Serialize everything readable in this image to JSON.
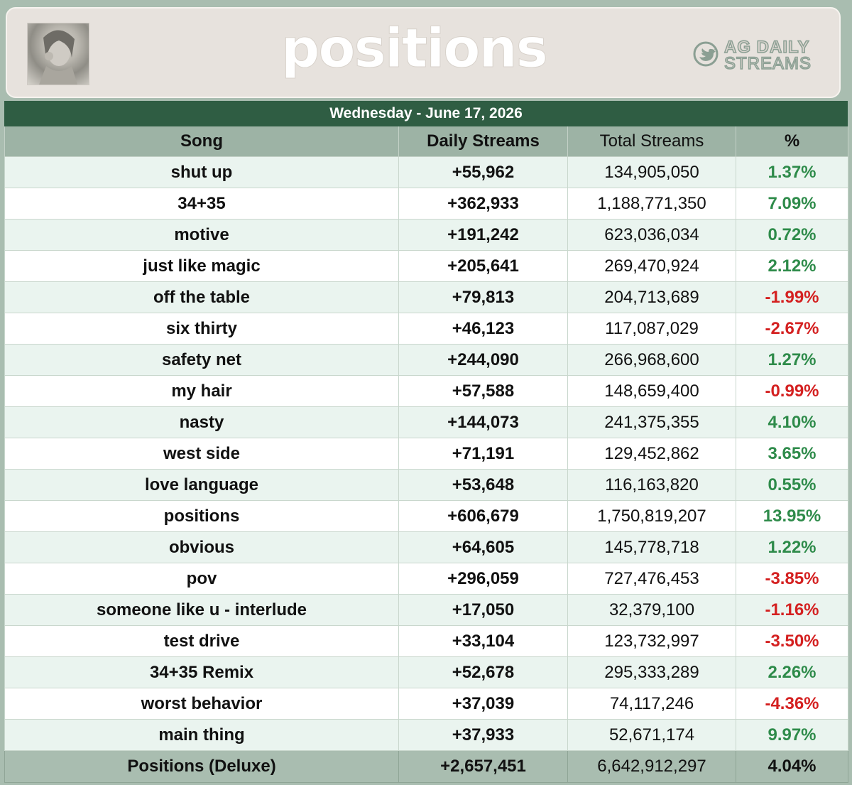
{
  "header": {
    "logo_text": "positions",
    "brand_line1": "AG DAILY",
    "brand_line2": "STREAMS"
  },
  "date": "Wednesday - June 17, 2026",
  "columns": [
    "Song",
    "Daily Streams",
    "Total Streams",
    "%"
  ],
  "rows": [
    {
      "song": "shut up",
      "daily": "+55,962",
      "total": "134,905,050",
      "pct": "1.37%",
      "dir": "pos"
    },
    {
      "song": "34+35",
      "daily": "+362,933",
      "total": "1,188,771,350",
      "pct": "7.09%",
      "dir": "pos"
    },
    {
      "song": "motive",
      "daily": "+191,242",
      "total": "623,036,034",
      "pct": "0.72%",
      "dir": "pos"
    },
    {
      "song": "just like magic",
      "daily": "+205,641",
      "total": "269,470,924",
      "pct": "2.12%",
      "dir": "pos"
    },
    {
      "song": "off the table",
      "daily": "+79,813",
      "total": "204,713,689",
      "pct": "-1.99%",
      "dir": "neg"
    },
    {
      "song": "six thirty",
      "daily": "+46,123",
      "total": "117,087,029",
      "pct": "-2.67%",
      "dir": "neg"
    },
    {
      "song": "safety net",
      "daily": "+244,090",
      "total": "266,968,600",
      "pct": "1.27%",
      "dir": "pos"
    },
    {
      "song": "my hair",
      "daily": "+57,588",
      "total": "148,659,400",
      "pct": "-0.99%",
      "dir": "neg"
    },
    {
      "song": "nasty",
      "daily": "+144,073",
      "total": "241,375,355",
      "pct": "4.10%",
      "dir": "pos"
    },
    {
      "song": "west side",
      "daily": "+71,191",
      "total": "129,452,862",
      "pct": "3.65%",
      "dir": "pos"
    },
    {
      "song": "love language",
      "daily": "+53,648",
      "total": "116,163,820",
      "pct": "0.55%",
      "dir": "pos"
    },
    {
      "song": "positions",
      "daily": "+606,679",
      "total": "1,750,819,207",
      "pct": "13.95%",
      "dir": "pos"
    },
    {
      "song": "obvious",
      "daily": "+64,605",
      "total": "145,778,718",
      "pct": "1.22%",
      "dir": "pos"
    },
    {
      "song": "pov",
      "daily": "+296,059",
      "total": "727,476,453",
      "pct": "-3.85%",
      "dir": "neg"
    },
    {
      "song": "someone like u - interlude",
      "daily": "+17,050",
      "total": "32,379,100",
      "pct": "-1.16%",
      "dir": "neg"
    },
    {
      "song": "test drive",
      "daily": "+33,104",
      "total": "123,732,997",
      "pct": "-3.50%",
      "dir": "neg"
    },
    {
      "song": "34+35 Remix",
      "daily": "+52,678",
      "total": "295,333,289",
      "pct": "2.26%",
      "dir": "pos"
    },
    {
      "song": "worst behavior",
      "daily": "+37,039",
      "total": "74,117,246",
      "pct": "-4.36%",
      "dir": "neg"
    },
    {
      "song": "main thing",
      "daily": "+37,933",
      "total": "52,671,174",
      "pct": "9.97%",
      "dir": "pos"
    }
  ],
  "total": {
    "song": "Positions (Deluxe)",
    "daily": "+2,657,451",
    "total": "6,642,912,297",
    "pct": "4.04%"
  },
  "colors": {
    "positive": "#2e8b4a",
    "negative": "#d42020",
    "date_bar": "#2f5d43",
    "background": "#a9bdb0"
  }
}
